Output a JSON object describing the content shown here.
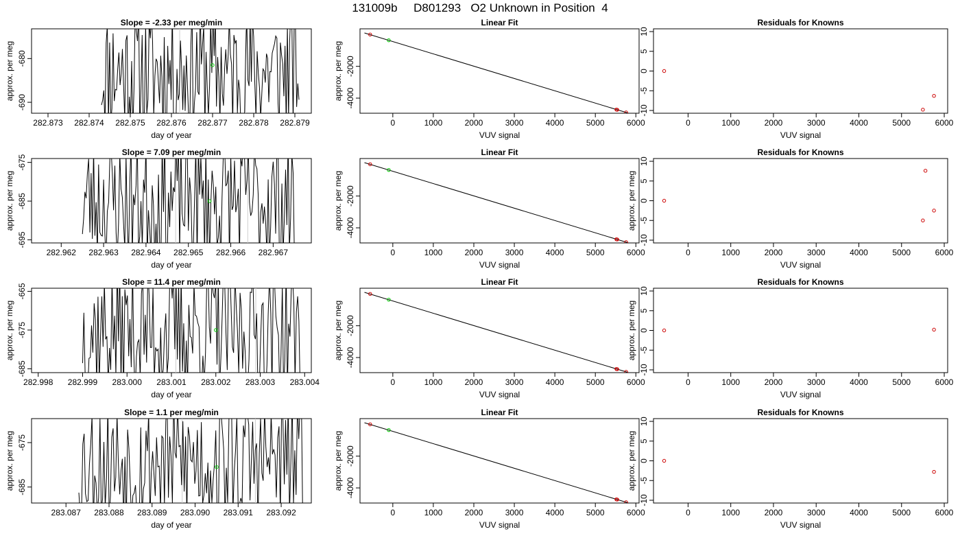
{
  "page": {
    "title": "131009b     D801293   O2 Unknown in Position  4"
  },
  "colors": {
    "axis": "#000000",
    "line": "#000000",
    "vline": "#cccccc",
    "unknown_point": "#00cc00",
    "known_point": "#cc0000"
  },
  "chart_data": [
    {
      "type": "line",
      "row": 1,
      "panel": "time-series",
      "title": "Slope =  -2.33  per meg/min",
      "xlabel": "day of year",
      "ylabel": "approx. per meg",
      "xlim": [
        282.8726,
        282.8794
      ],
      "ylim": [
        -692.5,
        -673.2
      ],
      "xticks": [
        "282.873",
        "282.874",
        "282.875",
        "282.876",
        "282.877",
        "282.878",
        "282.879"
      ],
      "yticks": [
        "-690",
        "-680"
      ],
      "series_x_range": [
        282.8743,
        282.8791
      ],
      "vlines": [
        282.8762,
        282.8778
      ],
      "unknown_point": {
        "x": 282.877,
        "y": -681.5
      },
      "seed": 11
    },
    {
      "type": "line",
      "row": 1,
      "panel": "linear-fit",
      "title": "Linear Fit",
      "xlabel": "VUV signal",
      "ylabel": "approx. per meg",
      "xlim": [
        -810,
        6080
      ],
      "ylim": [
        -4950,
        360
      ],
      "xticks": [
        "0",
        "1000",
        "2000",
        "3000",
        "4000",
        "5000",
        "6000"
      ],
      "yticks": [
        "-4000",
        "-2000"
      ],
      "line": [
        [
          -700,
          100
        ],
        [
          5810,
          -4940
        ]
      ],
      "known_points": [
        [
          -560,
          0
        ],
        [
          5520,
          -4720
        ],
        [
          5540,
          -4730
        ],
        [
          5760,
          -4900
        ]
      ],
      "unknown_point": {
        "x": -100,
        "y": -360
      }
    },
    {
      "type": "scatter",
      "row": 1,
      "panel": "residuals",
      "title": "Residuals for Knowns",
      "xlabel": "VUV signal",
      "ylabel": "",
      "xlim": [
        -810,
        6080
      ],
      "ylim": [
        -10.7,
        10.7
      ],
      "xticks": [
        "0",
        "1000",
        "2000",
        "3000",
        "4000",
        "5000",
        "6000"
      ],
      "yticks": [
        "-10",
        "-5",
        "0",
        "5",
        "10"
      ],
      "points": [
        [
          -560,
          0
        ],
        [
          5500,
          -9.8
        ],
        [
          5760,
          -6.3
        ]
      ]
    },
    {
      "type": "line",
      "row": 2,
      "panel": "time-series",
      "title": "Slope =  7.09  per meg/min",
      "xlabel": "day of year",
      "ylabel": "approx. per meg",
      "xlim": [
        282.9613,
        282.9679
      ],
      "ylim": [
        -695.8,
        -674.0
      ],
      "xticks": [
        "282.962",
        "282.963",
        "282.964",
        "282.965",
        "282.966",
        "282.967"
      ],
      "yticks": [
        "-695",
        "-685",
        "-675"
      ],
      "series_x_range": [
        282.9625,
        282.9675
      ],
      "vlines": [
        282.9647,
        282.9664
      ],
      "unknown_point": {
        "x": 282.9655,
        "y": -685.0
      },
      "seed": 23
    },
    {
      "type": "line",
      "row": 2,
      "panel": "linear-fit",
      "title": "Linear Fit",
      "xlabel": "VUV signal",
      "ylabel": "approx. per meg",
      "xlim": [
        -810,
        6080
      ],
      "ylim": [
        -4950,
        360
      ],
      "xticks": [
        "0",
        "1000",
        "2000",
        "3000",
        "4000",
        "5000",
        "6000"
      ],
      "yticks": [
        "-4000",
        "-2000"
      ],
      "line": [
        [
          -700,
          100
        ],
        [
          5810,
          -4940
        ]
      ],
      "known_points": [
        [
          -560,
          0
        ],
        [
          5520,
          -4720
        ],
        [
          5540,
          -4730
        ],
        [
          5760,
          -4900
        ]
      ],
      "unknown_point": {
        "x": -100,
        "y": -360
      }
    },
    {
      "type": "scatter",
      "row": 2,
      "panel": "residuals",
      "title": "Residuals for Knowns",
      "xlabel": "VUV signal",
      "ylabel": "approx. per meg",
      "xlim": [
        -810,
        6080
      ],
      "ylim": [
        -10.7,
        10.7
      ],
      "xticks": [
        "0",
        "1000",
        "2000",
        "3000",
        "4000",
        "5000",
        "6000"
      ],
      "yticks": [
        "-10",
        "-5",
        "0",
        "5",
        "10"
      ],
      "points": [
        [
          -560,
          0
        ],
        [
          5500,
          -5.0
        ],
        [
          5560,
          7.6
        ],
        [
          5760,
          -2.5
        ]
      ]
    },
    {
      "type": "line",
      "row": 3,
      "panel": "time-series",
      "title": "Slope =  11.4  per meg/min",
      "xlabel": "day of year",
      "ylabel": "approx. per meg",
      "xlim": [
        282.99785,
        283.00415
      ],
      "ylim": [
        -686.0,
        -664.2
      ],
      "xticks": [
        "282.998",
        "282.999",
        "283.000",
        "283.001",
        "283.002",
        "283.003",
        "283.004"
      ],
      "yticks": [
        "-685",
        "-675",
        "-665"
      ],
      "series_x_range": [
        282.999,
        283.0039
      ],
      "vlines": [
        283.0011,
        283.0029
      ],
      "unknown_point": {
        "x": 283.002,
        "y": -675.0
      },
      "seed": 37
    },
    {
      "type": "line",
      "row": 3,
      "panel": "linear-fit",
      "title": "Linear Fit",
      "xlabel": "VUV signal",
      "ylabel": "approx. per meg",
      "xlim": [
        -810,
        6080
      ],
      "ylim": [
        -4950,
        360
      ],
      "xticks": [
        "0",
        "1000",
        "2000",
        "3000",
        "4000",
        "5000",
        "6000"
      ],
      "yticks": [
        "-4000",
        "-2000"
      ],
      "line": [
        [
          -700,
          100
        ],
        [
          5810,
          -4940
        ]
      ],
      "known_points": [
        [
          -560,
          0
        ],
        [
          5520,
          -4720
        ],
        [
          5540,
          -4730
        ],
        [
          5760,
          -4900
        ]
      ],
      "unknown_point": {
        "x": -100,
        "y": -360
      }
    },
    {
      "type": "scatter",
      "row": 3,
      "panel": "residuals",
      "title": "Residuals for Knowns",
      "xlabel": "VUV signal",
      "ylabel": "approx. per meg",
      "xlim": [
        -810,
        6080
      ],
      "ylim": [
        -10.7,
        10.7
      ],
      "xticks": [
        "0",
        "1000",
        "2000",
        "3000",
        "4000",
        "5000",
        "6000"
      ],
      "yticks": [
        "-10",
        "-5",
        "0",
        "5",
        "10"
      ],
      "points": [
        [
          -560,
          0
        ],
        [
          5760,
          0.2
        ]
      ]
    },
    {
      "type": "line",
      "row": 4,
      "panel": "time-series",
      "title": "Slope =  1.1  per meg/min",
      "xlabel": "day of year",
      "ylabel": "approx. per meg",
      "xlim": [
        283.0862,
        283.0927
      ],
      "ylim": [
        -688.6,
        -669.6
      ],
      "xticks": [
        "283.087",
        "283.088",
        "283.089",
        "283.090",
        "283.091",
        "283.092"
      ],
      "yticks": [
        "-685",
        "-675"
      ],
      "series_x_range": [
        283.0873,
        283.0925
      ],
      "vlines": [
        283.0897,
        283.0914
      ],
      "unknown_point": {
        "x": 283.0905,
        "y": -680.5
      },
      "seed": 53
    },
    {
      "type": "line",
      "row": 4,
      "panel": "linear-fit",
      "title": "Linear Fit",
      "xlabel": "VUV signal",
      "ylabel": "approx. per meg",
      "xlim": [
        -810,
        6080
      ],
      "ylim": [
        -4950,
        360
      ],
      "xticks": [
        "0",
        "1000",
        "2000",
        "3000",
        "4000",
        "5000",
        "6000"
      ],
      "yticks": [
        "-4000",
        "-2000"
      ],
      "line": [
        [
          -700,
          100
        ],
        [
          5810,
          -4940
        ]
      ],
      "known_points": [
        [
          -560,
          0
        ],
        [
          5520,
          -4720
        ],
        [
          5540,
          -4730
        ],
        [
          5760,
          -4900
        ]
      ],
      "unknown_point": {
        "x": -100,
        "y": -360
      }
    },
    {
      "type": "scatter",
      "row": 4,
      "panel": "residuals",
      "title": "Residuals for Knowns",
      "xlabel": "VUV signal",
      "ylabel": "approx. per meg",
      "xlim": [
        -810,
        6080
      ],
      "ylim": [
        -10.7,
        10.7
      ],
      "xticks": [
        "0",
        "1000",
        "2000",
        "3000",
        "4000",
        "5000",
        "6000"
      ],
      "yticks": [
        "-10",
        "-5",
        "0",
        "5",
        "10"
      ],
      "points": [
        [
          -560,
          0
        ],
        [
          5760,
          -2.8
        ]
      ]
    }
  ]
}
